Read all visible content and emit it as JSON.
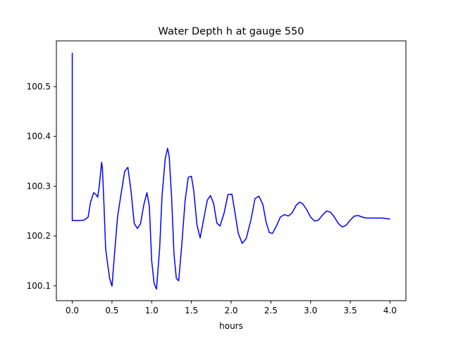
{
  "chart_data": {
    "type": "line",
    "title": "Water Depth h at gauge 550",
    "xlabel": "hours",
    "ylabel": "",
    "xlim": [
      -0.2,
      4.2
    ],
    "ylim": [
      100.07,
      100.592
    ],
    "x_ticks": [
      0.0,
      0.5,
      1.0,
      1.5,
      2.0,
      2.5,
      3.0,
      3.5,
      4.0
    ],
    "x_tick_labels": [
      "0.0",
      "0.5",
      "1.0",
      "1.5",
      "2.0",
      "2.5",
      "3.0",
      "3.5",
      "4.0"
    ],
    "y_ticks": [
      100.1,
      100.2,
      100.3,
      100.4,
      100.5
    ],
    "y_tick_labels": [
      "100.1",
      "100.2",
      "100.3",
      "100.4",
      "100.5"
    ],
    "grid": false,
    "legend": "none",
    "series": [
      {
        "color": "#0000ff",
        "x": [
          0.0,
          0.0,
          0.0,
          0.05,
          0.1,
          0.15,
          0.2,
          0.23,
          0.27,
          0.3,
          0.32,
          0.34,
          0.37,
          0.38,
          0.4,
          0.42,
          0.44,
          0.47,
          0.5,
          0.53,
          0.57,
          0.61,
          0.66,
          0.7,
          0.74,
          0.78,
          0.82,
          0.86,
          0.9,
          0.94,
          0.97,
          1.0,
          1.03,
          1.06,
          1.1,
          1.13,
          1.17,
          1.2,
          1.22,
          1.25,
          1.28,
          1.31,
          1.34,
          1.38,
          1.42,
          1.46,
          1.5,
          1.53,
          1.57,
          1.61,
          1.65,
          1.7,
          1.74,
          1.78,
          1.82,
          1.86,
          1.91,
          1.96,
          2.01,
          2.05,
          2.09,
          2.14,
          2.19,
          2.25,
          2.3,
          2.35,
          2.4,
          2.44,
          2.48,
          2.52,
          2.57,
          2.62,
          2.67,
          2.72,
          2.77,
          2.82,
          2.86,
          2.9,
          2.95,
          3.0,
          3.05,
          3.1,
          3.15,
          3.2,
          3.25,
          3.3,
          3.35,
          3.4,
          3.45,
          3.5,
          3.55,
          3.6,
          3.65,
          3.7,
          3.8,
          3.9,
          4.0
        ],
        "y": [
          100.568,
          100.232,
          100.231,
          100.231,
          100.231,
          100.232,
          100.238,
          100.268,
          100.287,
          100.283,
          100.278,
          100.3,
          100.348,
          100.335,
          100.26,
          100.175,
          100.15,
          100.115,
          100.099,
          100.16,
          100.238,
          100.28,
          100.33,
          100.338,
          100.29,
          100.225,
          100.215,
          100.225,
          100.262,
          100.287,
          100.26,
          100.15,
          100.105,
          100.093,
          100.175,
          100.28,
          100.355,
          100.376,
          100.36,
          100.28,
          100.165,
          100.115,
          100.11,
          100.185,
          100.27,
          100.318,
          100.32,
          100.29,
          100.222,
          100.196,
          100.23,
          100.272,
          100.281,
          100.265,
          100.226,
          100.22,
          100.245,
          100.283,
          100.284,
          100.245,
          100.205,
          100.185,
          100.195,
          100.233,
          100.275,
          100.28,
          100.263,
          100.228,
          100.207,
          100.205,
          100.22,
          100.238,
          100.243,
          100.24,
          100.247,
          100.262,
          100.268,
          100.265,
          100.253,
          100.238,
          100.23,
          100.232,
          100.242,
          100.25,
          100.248,
          100.238,
          100.225,
          100.218,
          100.222,
          100.232,
          100.24,
          100.241,
          100.238,
          100.236,
          100.236,
          100.236,
          100.234
        ]
      }
    ]
  }
}
